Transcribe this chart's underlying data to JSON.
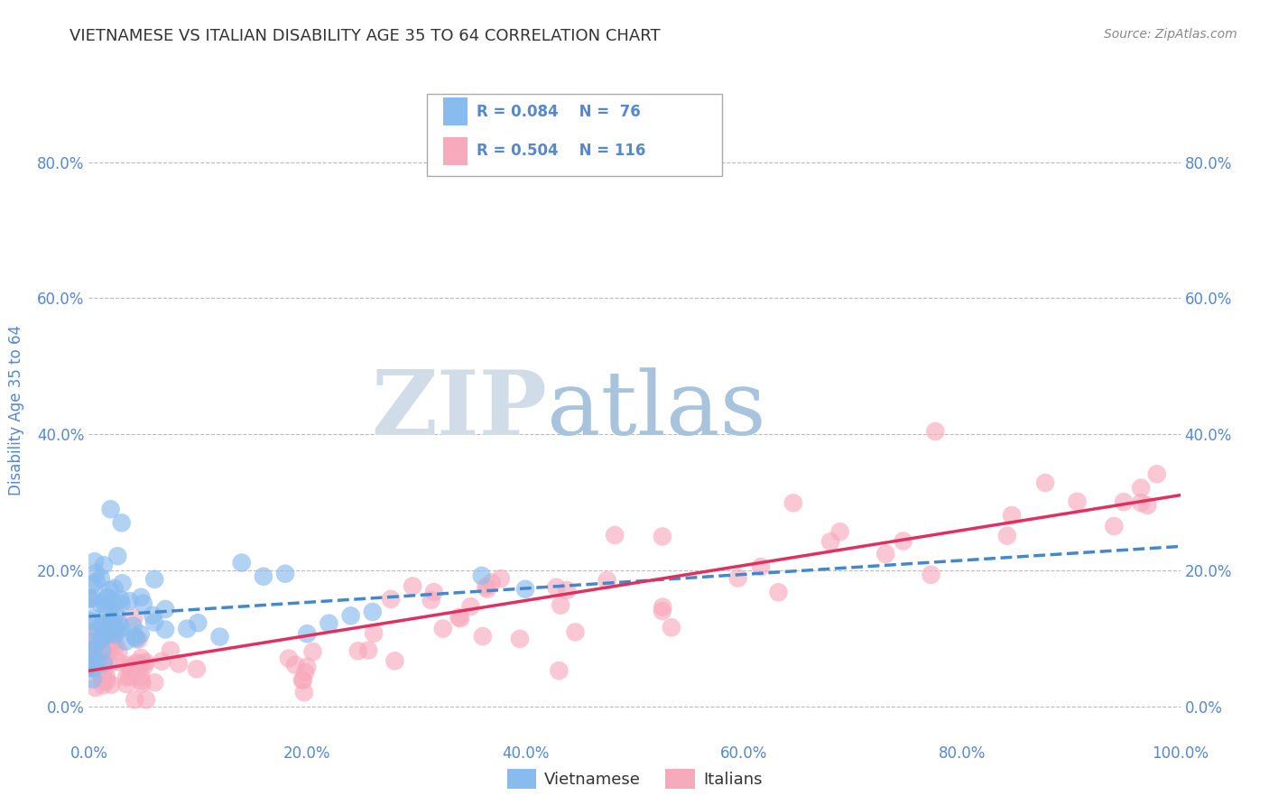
{
  "title": "VIETNAMESE VS ITALIAN DISABILITY AGE 35 TO 64 CORRELATION CHART",
  "source": "Source: ZipAtlas.com",
  "ylabel": "Disability Age 35 to 64",
  "xlim": [
    0.0,
    1.0
  ],
  "ylim": [
    -0.05,
    0.92
  ],
  "xticks": [
    0.0,
    0.2,
    0.4,
    0.6,
    0.8,
    1.0
  ],
  "xtick_labels": [
    "0.0%",
    "20.0%",
    "40.0%",
    "60.0%",
    "80.0%",
    "100.0%"
  ],
  "ytick_positions": [
    0.0,
    0.2,
    0.4,
    0.6,
    0.8
  ],
  "ytick_labels": [
    "0.0%",
    "20.0%",
    "40.0%",
    "60.0%",
    "80.0%"
  ],
  "legend_r_blue": "R = 0.084",
  "legend_n_blue": "N =  76",
  "legend_r_pink": "R = 0.504",
  "legend_n_pink": "N = 116",
  "blue_color": "#88BBEE",
  "pink_color": "#F8AABD",
  "trend_blue_color": "#4488CC",
  "trend_pink_color": "#E03060",
  "watermark_zip": "ZIP",
  "watermark_atlas": "atlas",
  "watermark_zip_color": "#D0DCE8",
  "watermark_atlas_color": "#A8C4DC",
  "background_color": "#FFFFFF",
  "title_color": "#333333",
  "axis_label_color": "#5588CC",
  "tick_color": "#5588CC",
  "grid_color": "#BBBBBB",
  "legend_box_color": "#AAAAAA",
  "source_color": "#888888",
  "title_fontsize": 13,
  "tick_fontsize": 12,
  "ylabel_fontsize": 12,
  "source_fontsize": 10
}
